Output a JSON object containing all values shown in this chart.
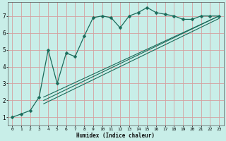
{
  "xlabel": "Humidex (Indice chaleur)",
  "bg_color": "#c8eee8",
  "grid_color": "#d4a0a0",
  "line_color": "#1a6b5a",
  "xlim": [
    -0.5,
    23.5
  ],
  "ylim": [
    0.5,
    7.8
  ],
  "xticks": [
    0,
    1,
    2,
    3,
    4,
    5,
    6,
    7,
    8,
    9,
    10,
    11,
    12,
    13,
    14,
    15,
    16,
    17,
    18,
    19,
    20,
    21,
    22,
    23
  ],
  "yticks": [
    1,
    2,
    3,
    4,
    5,
    6,
    7
  ],
  "main_x": [
    0,
    1,
    2,
    3,
    4,
    5,
    6,
    7,
    8,
    9,
    10,
    11,
    12,
    13,
    14,
    15,
    16,
    17,
    18,
    19,
    20,
    21,
    22,
    23
  ],
  "main_y": [
    1.0,
    1.2,
    1.4,
    2.2,
    5.0,
    3.0,
    4.8,
    4.6,
    5.8,
    6.9,
    7.0,
    6.9,
    6.3,
    7.0,
    7.2,
    7.5,
    7.2,
    7.1,
    7.0,
    6.8,
    6.8,
    7.0,
    7.0,
    7.0
  ],
  "tline1_x": [
    3.5,
    23
  ],
  "tline1_y": [
    2.0,
    7.0
  ],
  "tline2_x": [
    3.5,
    23
  ],
  "tline2_y": [
    2.2,
    7.0
  ],
  "tline3_x": [
    3.5,
    23
  ],
  "tline3_y": [
    1.8,
    6.85
  ]
}
